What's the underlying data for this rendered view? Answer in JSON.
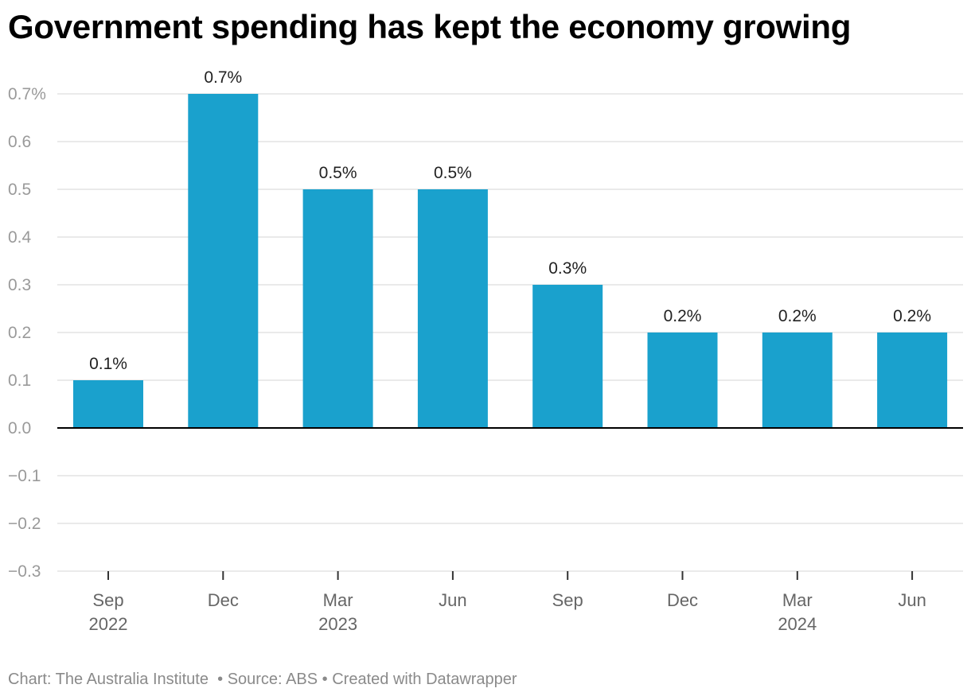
{
  "title": "Government spending has kept the economy growing",
  "footer": {
    "credit": "Chart: The Australia Institute",
    "separator": "•",
    "source": "Source: ABS",
    "created": "Created with Datawrapper"
  },
  "colors": {
    "bar": "#1aa1cd",
    "grid": "#e3e3e3",
    "baseline": "#000000",
    "tick_label": "#9a9a9a",
    "axis_label": "#666666",
    "value_label": "#222222"
  },
  "chart_data": {
    "type": "bar",
    "title": "Government spending has kept the economy growing",
    "categories": [
      "Sep 2022",
      "Dec 2022",
      "Mar 2023",
      "Jun 2023",
      "Sep 2023",
      "Dec 2023",
      "Mar 2024",
      "Jun 2024"
    ],
    "x_tick_labels": [
      [
        "Sep",
        "2022"
      ],
      [
        "Dec"
      ],
      [
        "Mar",
        "2023"
      ],
      [
        "Jun"
      ],
      [
        "Sep"
      ],
      [
        "Dec"
      ],
      [
        "Mar",
        "2024"
      ],
      [
        "Jun"
      ]
    ],
    "values": [
      0.1,
      0.7,
      0.5,
      0.5,
      0.3,
      0.2,
      0.2,
      0.2
    ],
    "data_labels": [
      "0.1%",
      "0.7%",
      "0.5%",
      "0.5%",
      "0.3%",
      "0.2%",
      "0.2%",
      "0.2%"
    ],
    "ylim": [
      -0.3,
      0.7
    ],
    "y_ticks": [
      0.7,
      0.6,
      0.5,
      0.4,
      0.3,
      0.2,
      0.1,
      0.0,
      -0.1,
      -0.2,
      -0.3
    ],
    "y_tick_labels": [
      "0.7%",
      "0.6",
      "0.5",
      "0.4",
      "0.3",
      "0.2",
      "0.1",
      "0.0",
      "−0.1",
      "−0.2",
      "−0.3"
    ],
    "xlabel": "",
    "ylabel": "",
    "grid": true,
    "legend": "none"
  }
}
